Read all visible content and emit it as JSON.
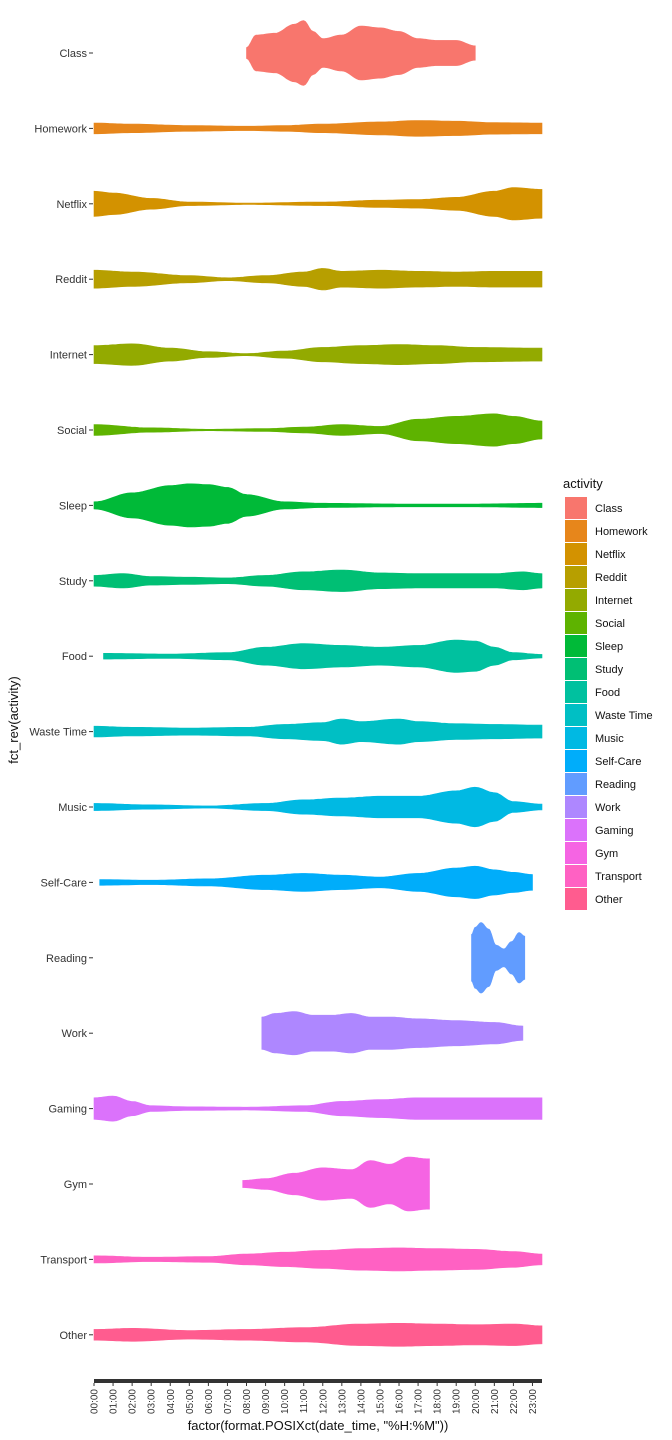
{
  "chart_data": {
    "type": "violin",
    "xlabel": "factor(format.POSIXct(date_time, \"%H:%M\"))",
    "ylabel": "fct_rev(activity)",
    "x_ticks": [
      "00:00",
      "01:00",
      "02:00",
      "03:00",
      "04:00",
      "05:00",
      "06:00",
      "07:00",
      "08:00",
      "09:00",
      "10:00",
      "11:00",
      "12:00",
      "13:00",
      "14:00",
      "15:00",
      "16:00",
      "17:00",
      "18:00",
      "19:00",
      "20:00",
      "21:00",
      "22:00",
      "23:00"
    ],
    "legend": {
      "title": "activity",
      "placement": "right"
    },
    "grid": false,
    "series": [
      {
        "name": "Class",
        "color": "#F8766D",
        "profile": [
          [
            8.0,
            0.15
          ],
          [
            8.5,
            0.5
          ],
          [
            9.5,
            0.55
          ],
          [
            10.5,
            0.8
          ],
          [
            11.0,
            0.9
          ],
          [
            11.5,
            0.6
          ],
          [
            12.0,
            0.4
          ],
          [
            13.0,
            0.5
          ],
          [
            14.0,
            0.75
          ],
          [
            15.0,
            0.7
          ],
          [
            16.0,
            0.6
          ],
          [
            17.0,
            0.4
          ],
          [
            18.0,
            0.35
          ],
          [
            19.0,
            0.35
          ],
          [
            20.0,
            0.2
          ]
        ]
      },
      {
        "name": "Homework",
        "color": "#E7861B",
        "profile": [
          [
            0,
            0.15
          ],
          [
            2,
            0.12
          ],
          [
            5,
            0.08
          ],
          [
            8,
            0.06
          ],
          [
            10,
            0.08
          ],
          [
            12,
            0.12
          ],
          [
            15,
            0.18
          ],
          [
            17,
            0.22
          ],
          [
            19,
            0.2
          ],
          [
            21,
            0.16
          ],
          [
            23.5,
            0.15
          ]
        ]
      },
      {
        "name": "Netflix",
        "color": "#D39200",
        "profile": [
          [
            0,
            0.35
          ],
          [
            1,
            0.3
          ],
          [
            3,
            0.15
          ],
          [
            5,
            0.05
          ],
          [
            8,
            0.02
          ],
          [
            12,
            0.05
          ],
          [
            15,
            0.1
          ],
          [
            17,
            0.12
          ],
          [
            19,
            0.18
          ],
          [
            21,
            0.35
          ],
          [
            22,
            0.45
          ],
          [
            23.5,
            0.4
          ]
        ]
      },
      {
        "name": "Reddit",
        "color": "#B79F00",
        "profile": [
          [
            0,
            0.25
          ],
          [
            2,
            0.2
          ],
          [
            5,
            0.1
          ],
          [
            7,
            0.04
          ],
          [
            9,
            0.1
          ],
          [
            11,
            0.2
          ],
          [
            12,
            0.3
          ],
          [
            13,
            0.22
          ],
          [
            15,
            0.25
          ],
          [
            17,
            0.22
          ],
          [
            19,
            0.2
          ],
          [
            21,
            0.22
          ],
          [
            23.5,
            0.22
          ]
        ]
      },
      {
        "name": "Internet",
        "color": "#93AA00",
        "profile": [
          [
            0,
            0.25
          ],
          [
            2,
            0.3
          ],
          [
            4,
            0.18
          ],
          [
            6,
            0.08
          ],
          [
            8,
            0.03
          ],
          [
            10,
            0.1
          ],
          [
            12,
            0.2
          ],
          [
            14,
            0.25
          ],
          [
            16,
            0.28
          ],
          [
            18,
            0.25
          ],
          [
            20,
            0.2
          ],
          [
            23.5,
            0.18
          ]
        ]
      },
      {
        "name": "Social",
        "color": "#5EB300",
        "profile": [
          [
            0,
            0.15
          ],
          [
            3,
            0.06
          ],
          [
            6,
            0.02
          ],
          [
            9,
            0.04
          ],
          [
            11,
            0.08
          ],
          [
            13,
            0.15
          ],
          [
            15,
            0.1
          ],
          [
            17,
            0.3
          ],
          [
            19,
            0.38
          ],
          [
            21,
            0.45
          ],
          [
            22,
            0.38
          ],
          [
            23.5,
            0.25
          ]
        ]
      },
      {
        "name": "Sleep",
        "color": "#00BA38",
        "profile": [
          [
            0,
            0.1
          ],
          [
            2,
            0.35
          ],
          [
            4,
            0.55
          ],
          [
            5,
            0.6
          ],
          [
            6,
            0.58
          ],
          [
            7,
            0.5
          ],
          [
            8,
            0.3
          ],
          [
            10,
            0.1
          ],
          [
            12,
            0.06
          ],
          [
            16,
            0.04
          ],
          [
            20,
            0.04
          ],
          [
            23.5,
            0.06
          ]
        ]
      },
      {
        "name": "Study",
        "color": "#00BF74",
        "profile": [
          [
            0,
            0.15
          ],
          [
            1.5,
            0.2
          ],
          [
            3,
            0.12
          ],
          [
            5,
            0.1
          ],
          [
            7,
            0.08
          ],
          [
            9,
            0.15
          ],
          [
            11,
            0.25
          ],
          [
            13,
            0.3
          ],
          [
            15,
            0.22
          ],
          [
            17,
            0.2
          ],
          [
            19,
            0.2
          ],
          [
            21,
            0.2
          ],
          [
            22.5,
            0.25
          ],
          [
            23.5,
            0.2
          ]
        ]
      },
      {
        "name": "Food",
        "color": "#00C19F",
        "profile": [
          [
            0.5,
            0.08
          ],
          [
            4,
            0.06
          ],
          [
            7,
            0.1
          ],
          [
            9,
            0.25
          ],
          [
            11,
            0.35
          ],
          [
            13,
            0.3
          ],
          [
            15,
            0.25
          ],
          [
            17,
            0.3
          ],
          [
            19,
            0.45
          ],
          [
            20,
            0.42
          ],
          [
            21,
            0.25
          ],
          [
            22,
            0.1
          ],
          [
            23.5,
            0.05
          ]
        ]
      },
      {
        "name": "Waste Time",
        "color": "#00BFC4",
        "profile": [
          [
            0,
            0.15
          ],
          [
            2,
            0.12
          ],
          [
            5,
            0.1
          ],
          [
            8,
            0.12
          ],
          [
            10,
            0.2
          ],
          [
            12,
            0.25
          ],
          [
            13,
            0.35
          ],
          [
            14,
            0.28
          ],
          [
            16,
            0.35
          ],
          [
            17,
            0.28
          ],
          [
            19,
            0.22
          ],
          [
            21,
            0.2
          ],
          [
            23.5,
            0.18
          ]
        ]
      },
      {
        "name": "Music",
        "color": "#00B9E3",
        "profile": [
          [
            0,
            0.1
          ],
          [
            3,
            0.06
          ],
          [
            6,
            0.03
          ],
          [
            9,
            0.1
          ],
          [
            11,
            0.2
          ],
          [
            13,
            0.25
          ],
          [
            15,
            0.3
          ],
          [
            17,
            0.3
          ],
          [
            19,
            0.45
          ],
          [
            20,
            0.55
          ],
          [
            21,
            0.4
          ],
          [
            22,
            0.15
          ],
          [
            23.5,
            0.08
          ]
        ]
      },
      {
        "name": "Self-Care",
        "color": "#00ADFA",
        "profile": [
          [
            0.3,
            0.08
          ],
          [
            3,
            0.06
          ],
          [
            6,
            0.1
          ],
          [
            9,
            0.2
          ],
          [
            11,
            0.25
          ],
          [
            13,
            0.2
          ],
          [
            15,
            0.15
          ],
          [
            17,
            0.25
          ],
          [
            19,
            0.4
          ],
          [
            20,
            0.45
          ],
          [
            21,
            0.35
          ],
          [
            22,
            0.28
          ],
          [
            23.0,
            0.22
          ]
        ]
      },
      {
        "name": "Reading",
        "color": "#619CFF",
        "profile": [
          [
            19.8,
            0.65
          ],
          [
            20.0,
            0.85
          ],
          [
            20.3,
            0.98
          ],
          [
            20.7,
            0.8
          ],
          [
            21.1,
            0.35
          ],
          [
            21.5,
            0.25
          ],
          [
            21.9,
            0.45
          ],
          [
            22.3,
            0.7
          ],
          [
            22.6,
            0.6
          ]
        ]
      },
      {
        "name": "Work",
        "color": "#AE87FF",
        "profile": [
          [
            8.8,
            0.45
          ],
          [
            9.5,
            0.55
          ],
          [
            10.5,
            0.6
          ],
          [
            11.5,
            0.5
          ],
          [
            12.5,
            0.5
          ],
          [
            13.5,
            0.55
          ],
          [
            14.5,
            0.45
          ],
          [
            15.5,
            0.45
          ],
          [
            17,
            0.4
          ],
          [
            19,
            0.35
          ],
          [
            21,
            0.3
          ],
          [
            22.5,
            0.2
          ]
        ]
      },
      {
        "name": "Gaming",
        "color": "#DB72FB",
        "profile": [
          [
            0,
            0.3
          ],
          [
            1,
            0.35
          ],
          [
            2,
            0.2
          ],
          [
            3,
            0.08
          ],
          [
            5,
            0.05
          ],
          [
            8,
            0.04
          ],
          [
            11,
            0.08
          ],
          [
            13,
            0.2
          ],
          [
            15,
            0.25
          ],
          [
            17,
            0.3
          ],
          [
            19,
            0.3
          ],
          [
            21,
            0.3
          ],
          [
            23.5,
            0.3
          ]
        ]
      },
      {
        "name": "Gym",
        "color": "#F564E3",
        "profile": [
          [
            7.8,
            0.1
          ],
          [
            9,
            0.15
          ],
          [
            10.5,
            0.3
          ],
          [
            12,
            0.45
          ],
          [
            13.5,
            0.4
          ],
          [
            14.5,
            0.65
          ],
          [
            15.5,
            0.55
          ],
          [
            16.5,
            0.75
          ],
          [
            17.5,
            0.7
          ],
          [
            17.6,
            0.7
          ]
        ]
      },
      {
        "name": "Transport",
        "color": "#FF61C3",
        "profile": [
          [
            0,
            0.1
          ],
          [
            3,
            0.06
          ],
          [
            6,
            0.08
          ],
          [
            8,
            0.15
          ],
          [
            10,
            0.2
          ],
          [
            12,
            0.25
          ],
          [
            14,
            0.3
          ],
          [
            16,
            0.32
          ],
          [
            18,
            0.3
          ],
          [
            20,
            0.28
          ],
          [
            22,
            0.22
          ],
          [
            23.5,
            0.15
          ]
        ]
      },
      {
        "name": "Other",
        "color": "#FF5C8F",
        "profile": [
          [
            0,
            0.15
          ],
          [
            2,
            0.18
          ],
          [
            5,
            0.12
          ],
          [
            8,
            0.15
          ],
          [
            11,
            0.2
          ],
          [
            14,
            0.3
          ],
          [
            16,
            0.32
          ],
          [
            18,
            0.3
          ],
          [
            20,
            0.28
          ],
          [
            22,
            0.3
          ],
          [
            23.5,
            0.25
          ]
        ]
      }
    ]
  }
}
